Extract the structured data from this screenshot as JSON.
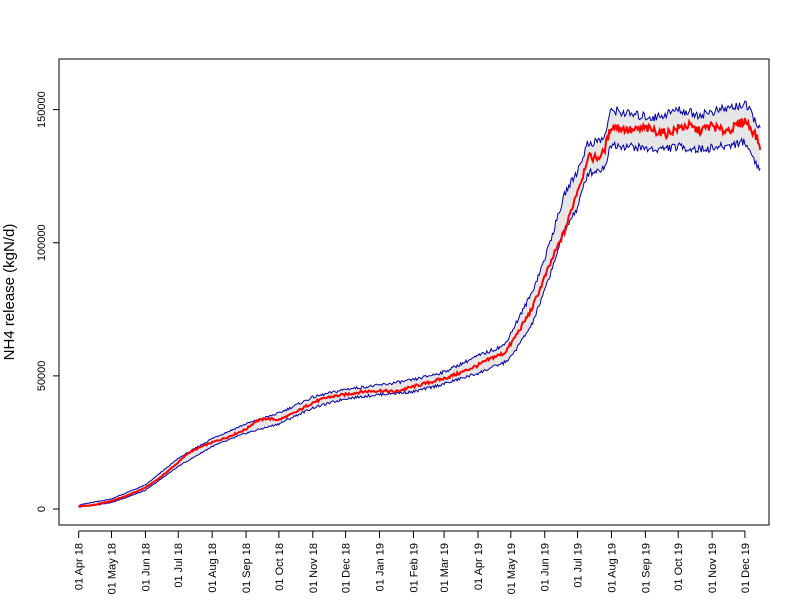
{
  "chart_data": {
    "type": "line",
    "title": "",
    "xlabel": "",
    "ylabel": "NH4 release (kgN/d)",
    "x_range": [
      "2018-03-14",
      "2019-12-23"
    ],
    "ylim": [
      -6000,
      169000
    ],
    "y_ticks": [
      0,
      50000,
      100000,
      150000
    ],
    "x_ticks": [
      {
        "date": "2018-04-01",
        "label": "01 Apr 18"
      },
      {
        "date": "2018-05-01",
        "label": "01 May 18"
      },
      {
        "date": "2018-06-01",
        "label": "01 Jun 18"
      },
      {
        "date": "2018-07-01",
        "label": "01 Jul 18"
      },
      {
        "date": "2018-08-01",
        "label": "01 Aug 18"
      },
      {
        "date": "2018-09-01",
        "label": "01 Sep 18"
      },
      {
        "date": "2018-10-01",
        "label": "01 Oct 18"
      },
      {
        "date": "2018-11-01",
        "label": "01 Nov 18"
      },
      {
        "date": "2018-12-01",
        "label": "01 Dec 18"
      },
      {
        "date": "2019-01-01",
        "label": "01 Jan 19"
      },
      {
        "date": "2019-02-01",
        "label": "01 Feb 19"
      },
      {
        "date": "2019-03-01",
        "label": "01 Mar 19"
      },
      {
        "date": "2019-04-01",
        "label": "01 Apr 19"
      },
      {
        "date": "2019-05-01",
        "label": "01 May 19"
      },
      {
        "date": "2019-06-01",
        "label": "01 Jun 19"
      },
      {
        "date": "2019-07-01",
        "label": "01 Jul 19"
      },
      {
        "date": "2019-08-01",
        "label": "01 Aug 19"
      },
      {
        "date": "2019-09-01",
        "label": "01 Sep 19"
      },
      {
        "date": "2019-10-01",
        "label": "01 Oct 19"
      },
      {
        "date": "2019-11-01",
        "label": "01 Nov 19"
      },
      {
        "date": "2019-12-01",
        "label": "01 Dec 19"
      }
    ],
    "grid": false,
    "legend": "none",
    "colors": {
      "mean": "#ff0000",
      "bounds": "#0000a0",
      "band": "#e6e6e6"
    },
    "series": [
      {
        "x": [
          "2018-04-01",
          "2018-04-15",
          "2018-05-01",
          "2018-05-15",
          "2018-06-01",
          "2018-06-15",
          "2018-07-01",
          "2018-07-10",
          "2018-07-20",
          "2018-08-01",
          "2018-08-15",
          "2018-09-01",
          "2018-09-10",
          "2018-09-20",
          "2018-10-01",
          "2018-10-15",
          "2018-11-01",
          "2018-11-15",
          "2018-12-01",
          "2018-12-15",
          "2019-01-01",
          "2019-01-15",
          "2019-02-01",
          "2019-02-15",
          "2019-03-01",
          "2019-03-15",
          "2019-04-01",
          "2019-04-15",
          "2019-04-25",
          "2019-05-01",
          "2019-05-10",
          "2019-05-20",
          "2019-06-01",
          "2019-06-10",
          "2019-06-20",
          "2019-06-25",
          "2019-07-01",
          "2019-07-05",
          "2019-07-10",
          "2019-07-20",
          "2019-07-25",
          "2019-08-01",
          "2019-08-10",
          "2019-08-20",
          "2019-09-01",
          "2019-09-10",
          "2019-09-20",
          "2019-10-01",
          "2019-10-10",
          "2019-10-20",
          "2019-11-01",
          "2019-11-10",
          "2019-11-20",
          "2019-12-01",
          "2019-12-10",
          "2019-12-15"
        ],
        "values": [
          1000,
          1500,
          3000,
          5000,
          8000,
          12000,
          17500,
          21000,
          23000,
          25000,
          27000,
          30000,
          33000,
          34000,
          33500,
          36000,
          40000,
          42000,
          43000,
          44000,
          44500,
          44000,
          46000,
          47500,
          49000,
          51000,
          54000,
          57000,
          58500,
          62000,
          68000,
          75000,
          87000,
          96000,
          105000,
          112000,
          120000,
          124000,
          132000,
          132000,
          134000,
          144000,
          143000,
          142000,
          143000,
          142000,
          141000,
          143000,
          144000,
          142000,
          144000,
          142000,
          143000,
          146000,
          141000,
          136000
        ]
      },
      {
        "x": [
          "2018-04-01",
          "2018-05-01",
          "2018-06-01",
          "2018-07-01",
          "2018-08-01",
          "2018-09-01",
          "2018-10-01",
          "2018-11-01",
          "2018-12-01",
          "2019-01-01",
          "2019-02-01",
          "2019-03-01",
          "2019-04-01",
          "2019-04-25",
          "2019-05-01",
          "2019-05-20",
          "2019-06-01",
          "2019-06-20",
          "2019-07-01",
          "2019-07-10",
          "2019-07-25",
          "2019-08-01",
          "2019-08-20",
          "2019-09-10",
          "2019-10-01",
          "2019-10-20",
          "2019-11-10",
          "2019-12-01",
          "2019-12-15"
        ],
        "values": [
          1500,
          3800,
          9000,
          19000,
          26500,
          32000,
          36000,
          42000,
          45000,
          46500,
          48500,
          51500,
          57500,
          61500,
          66000,
          81000,
          94000,
          119000,
          127000,
          137000,
          139000,
          150000,
          148000,
          147000,
          150000,
          148000,
          150000,
          152000,
          143000
        ]
      },
      {
        "x": [
          "2018-04-01",
          "2018-05-01",
          "2018-06-01",
          "2018-07-01",
          "2018-08-01",
          "2018-09-01",
          "2018-10-01",
          "2018-11-01",
          "2018-12-01",
          "2019-01-01",
          "2019-02-01",
          "2019-03-01",
          "2019-04-01",
          "2019-04-25",
          "2019-05-01",
          "2019-05-20",
          "2019-06-01",
          "2019-06-20",
          "2019-07-01",
          "2019-07-10",
          "2019-07-25",
          "2019-08-01",
          "2019-08-20",
          "2019-09-10",
          "2019-10-01",
          "2019-10-20",
          "2019-11-10",
          "2019-12-01",
          "2019-12-15"
        ],
        "values": [
          700,
          2400,
          7000,
          16000,
          23500,
          28500,
          32000,
          38000,
          41500,
          43000,
          44000,
          47000,
          51000,
          55000,
          57000,
          69000,
          82000,
          106000,
          113000,
          126000,
          128000,
          137000,
          136000,
          135000,
          136000,
          135000,
          136000,
          138000,
          127000
        ]
      }
    ]
  }
}
